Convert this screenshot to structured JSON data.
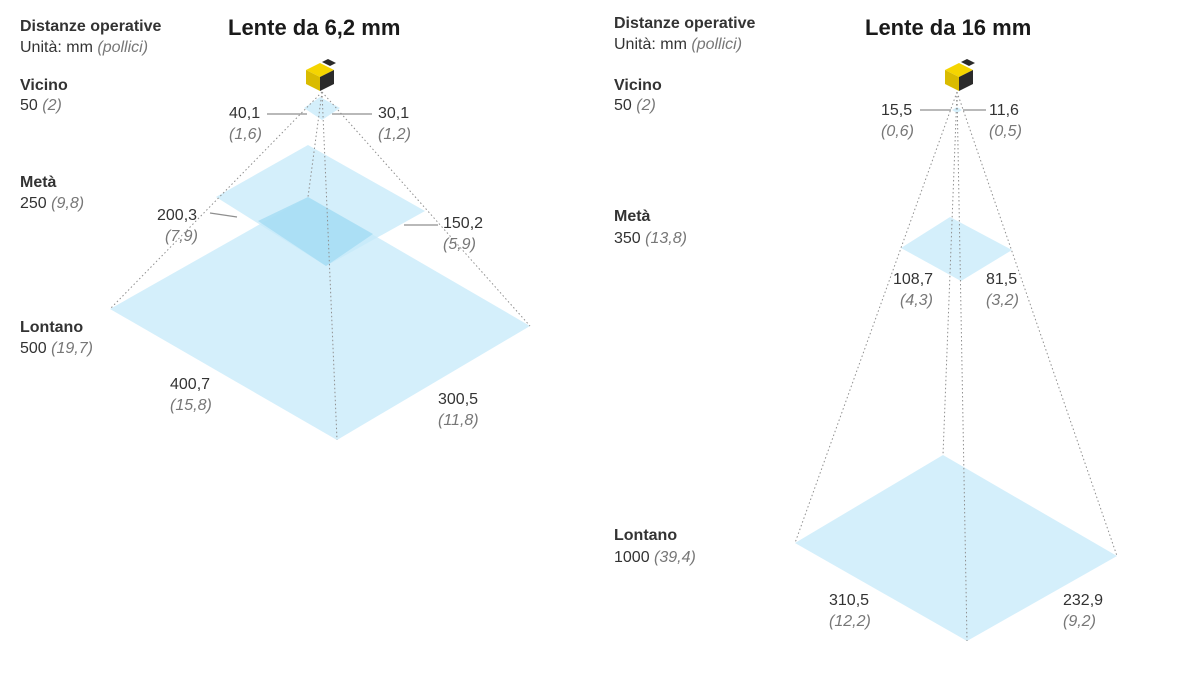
{
  "colors": {
    "fov_fill": "#c6e9f9",
    "fov_overlap": "#a4dcf4",
    "lines": "#8f8f8f",
    "sensor_yellow": "#f5d500",
    "sensor_dark": "#2b2b2b",
    "text": "#333333",
    "imperial_text": "#777777"
  },
  "icons": {
    "sensor": "sensor-icon"
  },
  "panels": [
    {
      "header": {
        "title": "Distanze operative",
        "units_label": "Unità: mm",
        "units_alt": "(pollici)"
      },
      "title": "Lente da 6,2 mm",
      "distances": [
        {
          "label": "Vicino",
          "value": "50",
          "value_imperial": "(2)",
          "width": "40,1",
          "width_imperial": "(1,6)",
          "height": "30,1",
          "height_imperial": "(1,2)"
        },
        {
          "label": "Metà",
          "value": "250",
          "value_imperial": "(9,8)",
          "width": "200,3",
          "width_imperial": "(7,9)",
          "height": "150,2",
          "height_imperial": "(5,9)"
        },
        {
          "label": "Lontano",
          "value": "500",
          "value_imperial": "(19,7)",
          "width": "400,7",
          "width_imperial": "(15,8)",
          "height": "300,5",
          "height_imperial": "(11,8)"
        }
      ]
    },
    {
      "header": {
        "title": "Distanze operative",
        "units_label": "Unità: mm",
        "units_alt": "(pollici)"
      },
      "title": "Lente da 16 mm",
      "distances": [
        {
          "label": "Vicino",
          "value": "50",
          "value_imperial": "(2)",
          "width": "15,5",
          "width_imperial": "(0,6)",
          "height": "11,6",
          "height_imperial": "(0,5)"
        },
        {
          "label": "Metà",
          "value": "350",
          "value_imperial": "(13,8)",
          "width": "108,7",
          "width_imperial": "(4,3)",
          "height": "81,5",
          "height_imperial": "(3,2)"
        },
        {
          "label": "Lontano",
          "value": "1000",
          "value_imperial": "(39,4)",
          "width": "310,5",
          "width_imperial": "(12,2)",
          "height": "232,9",
          "height_imperial": "(9,2)"
        }
      ]
    }
  ]
}
